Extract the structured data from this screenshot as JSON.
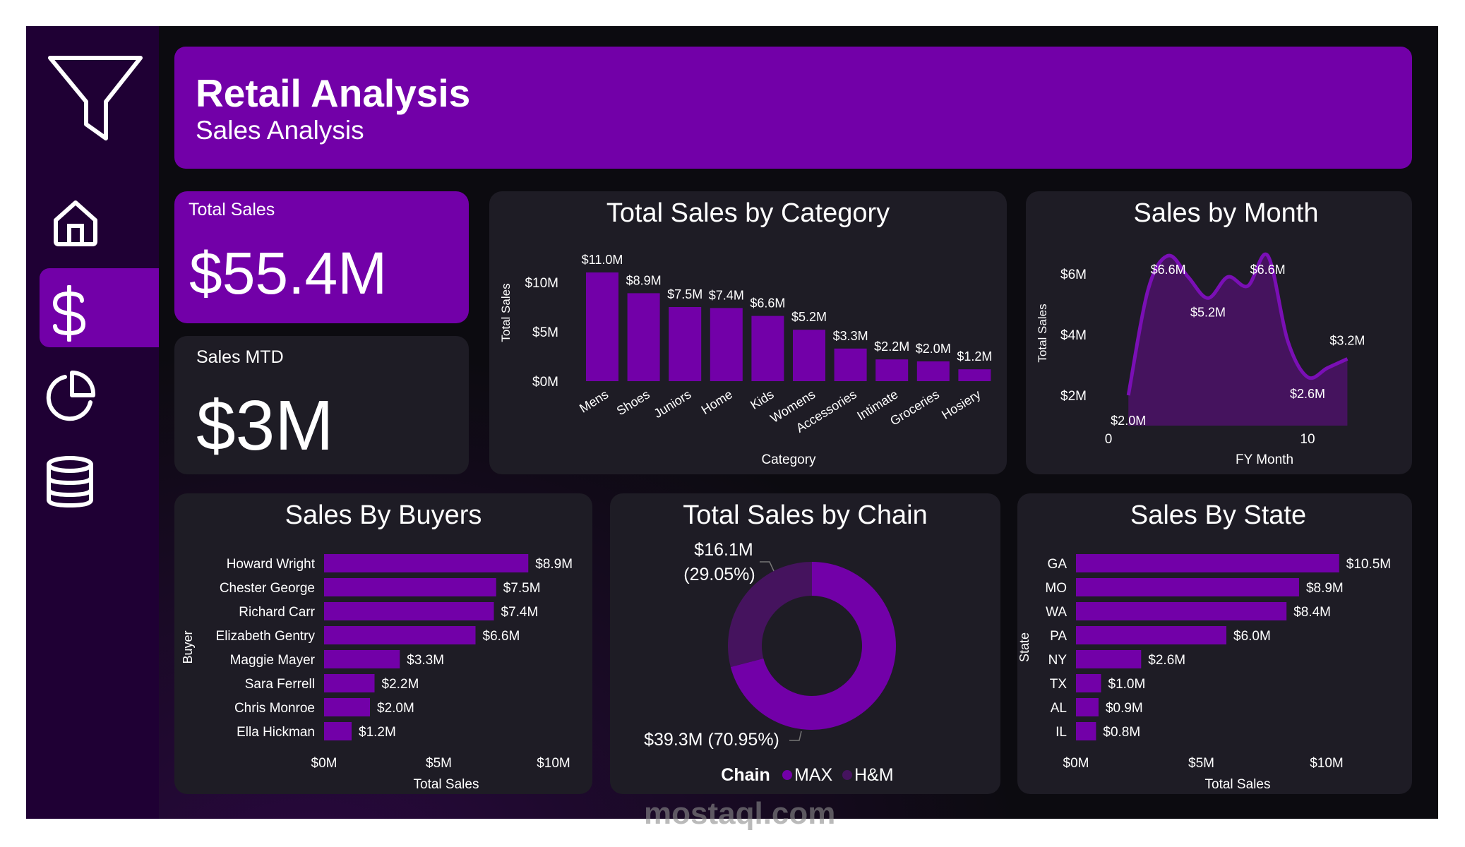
{
  "sidebar": {
    "items": [
      {
        "icon": "filter-icon"
      },
      {
        "icon": "home-icon"
      },
      {
        "icon": "dollar-icon",
        "active": true
      },
      {
        "icon": "pie-chart-icon"
      },
      {
        "icon": "database-icon"
      }
    ]
  },
  "header": {
    "title": "Retail Analysis",
    "subtitle": "Sales Analysis"
  },
  "kpis": {
    "total_sales": {
      "label": "Total Sales",
      "value": "$55.4M"
    },
    "sales_mtd": {
      "label": "Sales MTD",
      "value": "$3M"
    }
  },
  "colors": {
    "accent": "#7200a8",
    "accent_dark": "#45135e",
    "sidebar": "#1f0034",
    "card": "#1e1c25",
    "background": "#0c0b10",
    "text": "#ffffff"
  },
  "chart_data": [
    {
      "id": "category",
      "type": "bar",
      "title": "Total Sales by Category",
      "xlabel": "Category",
      "ylabel": "Total Sales",
      "categories": [
        "Mens",
        "Shoes",
        "Juniors",
        "Home",
        "Kids",
        "Womens",
        "Accessories",
        "Intimate",
        "Groceries",
        "Hosiery"
      ],
      "values": [
        11.0,
        8.9,
        7.5,
        7.4,
        6.6,
        5.2,
        3.3,
        2.2,
        2.0,
        1.2
      ],
      "data_labels": [
        "$11.0M",
        "$8.9M",
        "$7.5M",
        "$7.4M",
        "$6.6M",
        "$5.2M",
        "$3.3M",
        "$2.2M",
        "$2.0M",
        "$1.2M"
      ],
      "yticks": [
        0,
        5,
        10
      ],
      "ytick_labels": [
        "$0M",
        "$5M",
        "$10M"
      ],
      "ylim": [
        0,
        11
      ],
      "unit": "$M",
      "grid": false
    },
    {
      "id": "month",
      "type": "area",
      "title": "Sales by Month",
      "xlabel": "FY Month",
      "ylabel": "Total Sales",
      "x": [
        1,
        2,
        3,
        4,
        5,
        6,
        7,
        8,
        9,
        10,
        11,
        12
      ],
      "values": [
        2.0,
        5.5,
        6.6,
        5.9,
        5.2,
        5.9,
        5.6,
        6.6,
        3.8,
        2.6,
        2.9,
        3.2
      ],
      "data_labels": [
        {
          "x": 1,
          "label": "$2.0M"
        },
        {
          "x": 3,
          "label": "$6.6M"
        },
        {
          "x": 5,
          "label": "$5.2M"
        },
        {
          "x": 8,
          "label": "$6.6M"
        },
        {
          "x": 10,
          "label": "$2.6M"
        },
        {
          "x": 12,
          "label": "$3.2M"
        }
      ],
      "xticks": [
        0,
        10
      ],
      "xtick_labels": [
        "0",
        "10"
      ],
      "yticks": [
        2,
        4,
        6
      ],
      "ytick_labels": [
        "$2M",
        "$4M",
        "$6M"
      ],
      "xlim": [
        0,
        12.5
      ],
      "ylim": [
        1.0,
        7.0
      ],
      "unit": "$M",
      "grid": false
    },
    {
      "id": "buyers",
      "type": "bar",
      "orientation": "horizontal",
      "title": "Sales By Buyers",
      "xlabel": "Total Sales",
      "ylabel": "Buyer",
      "categories": [
        "Howard Wright",
        "Chester George",
        "Richard Carr",
        "Elizabeth Gentry",
        "Maggie Mayer",
        "Sara Ferrell",
        "Chris Monroe",
        "Ella Hickman"
      ],
      "values": [
        8.9,
        7.5,
        7.4,
        6.6,
        3.3,
        2.2,
        2.0,
        1.2
      ],
      "data_labels": [
        "$8.9M",
        "$7.5M",
        "$7.4M",
        "$6.6M",
        "$3.3M",
        "$2.2M",
        "$2.0M",
        "$1.2M"
      ],
      "xticks": [
        0,
        5,
        10
      ],
      "xtick_labels": [
        "$0M",
        "$5M",
        "$10M"
      ],
      "xlim": [
        0,
        10
      ],
      "unit": "$M",
      "grid": false
    },
    {
      "id": "chain",
      "type": "pie",
      "variant": "donut",
      "title": "Total Sales by Chain",
      "legend_title": "Chain",
      "legend_position": "bottom",
      "slices": [
        {
          "name": "MAX",
          "value": 39.3,
          "percent": 70.95,
          "label": "$39.3M (70.95%)",
          "color": "#7200a8"
        },
        {
          "name": "H&M",
          "value": 16.1,
          "percent": 29.05,
          "label_value": "$16.1M",
          "label_percent": "(29.05%)",
          "color": "#45135e"
        }
      ],
      "unit": "$M"
    },
    {
      "id": "state",
      "type": "bar",
      "orientation": "horizontal",
      "title": "Sales By State",
      "xlabel": "Total Sales",
      "ylabel": "State",
      "categories": [
        "GA",
        "MO",
        "WA",
        "PA",
        "NY",
        "TX",
        "AL",
        "IL"
      ],
      "values": [
        10.5,
        8.9,
        8.4,
        6.0,
        2.6,
        1.0,
        0.9,
        0.8
      ],
      "data_labels": [
        "$10.5M",
        "$8.9M",
        "$8.4M",
        "$6.0M",
        "$2.6M",
        "$1.0M",
        "$0.9M",
        "$0.8M"
      ],
      "xticks": [
        0,
        5,
        10
      ],
      "xtick_labels": [
        "$0M",
        "$5M",
        "$10M"
      ],
      "xlim": [
        0,
        10
      ],
      "unit": "$M",
      "grid": false
    }
  ],
  "watermark": "mostaql.com"
}
